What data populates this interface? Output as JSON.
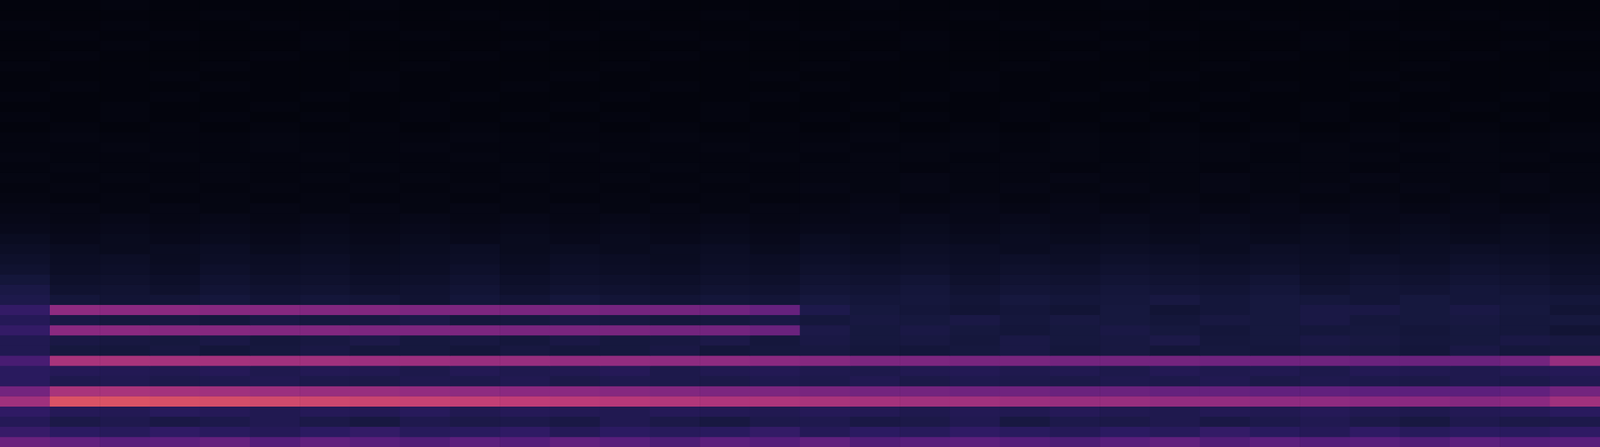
{
  "chart_data": {
    "type": "heatmap",
    "tick_labels": false,
    "zlim": [
      0,
      100
    ],
    "cells": [
      [
        48,
        46,
        44,
        45,
        47,
        43,
        46,
        44,
        42,
        45,
        43,
        46,
        44,
        41,
        45,
        43,
        46,
        42,
        44,
        45,
        43,
        41,
        44,
        46,
        42,
        45,
        43,
        44,
        42,
        45,
        43,
        44
      ],
      [
        36,
        33,
        31,
        34,
        32,
        30,
        33,
        35,
        31,
        32,
        34,
        30,
        33,
        31,
        32,
        35,
        30,
        33,
        31,
        34,
        32,
        30,
        33,
        31,
        35,
        32,
        30,
        34,
        31,
        33,
        32,
        34
      ],
      [
        30,
        25,
        27,
        24,
        26,
        28,
        25,
        23,
        27,
        25,
        26,
        24,
        28,
        25,
        23,
        26,
        27,
        24,
        25,
        28,
        23,
        26,
        25,
        27,
        24,
        26,
        28,
        25,
        23,
        27,
        25,
        26
      ],
      [
        34,
        30,
        29,
        31,
        30,
        28,
        30,
        29,
        31,
        28,
        30,
        29,
        28,
        30,
        29,
        28,
        30,
        29,
        27,
        29,
        28,
        30,
        28,
        27,
        29,
        28,
        30,
        28,
        27,
        29,
        30,
        32
      ],
      [
        60,
        75,
        75,
        74,
        73,
        72,
        71,
        70,
        69,
        68,
        67,
        66,
        65,
        64,
        63,
        63,
        62,
        61,
        60,
        60,
        59,
        58,
        58,
        57,
        57,
        56,
        56,
        55,
        55,
        54,
        55,
        60
      ],
      [
        50,
        62,
        62,
        61,
        60,
        59,
        58,
        58,
        57,
        56,
        55,
        55,
        54,
        53,
        52,
        52,
        51,
        50,
        50,
        49,
        49,
        48,
        48,
        47,
        47,
        46,
        46,
        45,
        45,
        45,
        46,
        50
      ],
      [
        32,
        27,
        28,
        26,
        27,
        28,
        26,
        25,
        27,
        26,
        28,
        25,
        27,
        26,
        25,
        27,
        26,
        28,
        25,
        27,
        26,
        25,
        27,
        26,
        28,
        25,
        27,
        26,
        25,
        27,
        26,
        28
      ],
      [
        32,
        30,
        29,
        28,
        30,
        27,
        29,
        28,
        26,
        29,
        27,
        28,
        30,
        26,
        28,
        29,
        27,
        26,
        28,
        29,
        27,
        28,
        26,
        29,
        27,
        28,
        26,
        29,
        28,
        27,
        29,
        30
      ],
      [
        40,
        62,
        62,
        61,
        61,
        60,
        60,
        59,
        59,
        58,
        58,
        57,
        57,
        56,
        56,
        55,
        54,
        52,
        52,
        51,
        51,
        50,
        50,
        50,
        49,
        49,
        49,
        48,
        48,
        48,
        50,
        58
      ],
      [
        28,
        22,
        21,
        23,
        20,
        22,
        24,
        21,
        22,
        20,
        23,
        21,
        22,
        24,
        20,
        22,
        23,
        21,
        20,
        22,
        24,
        21,
        23,
        20,
        22,
        21,
        23,
        22,
        20,
        24,
        21,
        22
      ],
      [
        28,
        24,
        23,
        22,
        24,
        21,
        23,
        25,
        22,
        23,
        21,
        24,
        22,
        23,
        25,
        21,
        24,
        22,
        23,
        21,
        24,
        22,
        23,
        25,
        21,
        22,
        24,
        23,
        21,
        22,
        24,
        23
      ],
      [
        35,
        55,
        55,
        54,
        54,
        53,
        53,
        52,
        52,
        52,
        51,
        51,
        51,
        50,
        50,
        48,
        25,
        22,
        24,
        22,
        20,
        22,
        24,
        22,
        20,
        22,
        21,
        22,
        20,
        22,
        21,
        18
      ],
      [
        30,
        24,
        22,
        23,
        21,
        24,
        22,
        23,
        25,
        21,
        22,
        24,
        23,
        21,
        22,
        24,
        21,
        23,
        22,
        24,
        21,
        23,
        22,
        20,
        23,
        22,
        24,
        21,
        22,
        23,
        21,
        22
      ],
      [
        35,
        56,
        55,
        55,
        54,
        54,
        53,
        53,
        52,
        52,
        51,
        51,
        50,
        50,
        49,
        47,
        26,
        22,
        20,
        18,
        20,
        18,
        22,
        18,
        20,
        22,
        24,
        24,
        22,
        24,
        22,
        18
      ],
      [
        26,
        20,
        18,
        19,
        21,
        18,
        20,
        19,
        17,
        20,
        18,
        21,
        19,
        18,
        20,
        19,
        22,
        20,
        21,
        19,
        22,
        20,
        21,
        23,
        20,
        22,
        21,
        19,
        22,
        20,
        21,
        20
      ],
      [
        24,
        16,
        17,
        15,
        18,
        16,
        17,
        15,
        16,
        18,
        15,
        17,
        16,
        15,
        17,
        16,
        19,
        18,
        20,
        17,
        19,
        18,
        20,
        19,
        18,
        20,
        17,
        19,
        18,
        20,
        19,
        17
      ],
      [
        20,
        14,
        15,
        13,
        16,
        14,
        15,
        13,
        14,
        16,
        13,
        15,
        14,
        13,
        15,
        14,
        17,
        16,
        18,
        15,
        17,
        16,
        18,
        17,
        16,
        18,
        15,
        17,
        16,
        18,
        17,
        15
      ],
      [
        16,
        12,
        13,
        11,
        14,
        12,
        13,
        11,
        12,
        14,
        11,
        13,
        12,
        11,
        13,
        12,
        15,
        14,
        15,
        13,
        15,
        14,
        16,
        15,
        14,
        15,
        13,
        15,
        14,
        16,
        15,
        13
      ],
      [
        14,
        11,
        12,
        10,
        12,
        11,
        12,
        10,
        11,
        12,
        10,
        12,
        11,
        10,
        12,
        11,
        13,
        12,
        13,
        12,
        13,
        12,
        14,
        13,
        12,
        13,
        12,
        13,
        12,
        14,
        13,
        12
      ],
      [
        12,
        10,
        9,
        10,
        11,
        9,
        10,
        9,
        10,
        11,
        9,
        10,
        9,
        10,
        11,
        9,
        11,
        10,
        12,
        11,
        10,
        11,
        12,
        11,
        10,
        12,
        11,
        10,
        11,
        12,
        11,
        10
      ],
      [
        10,
        8,
        9,
        8,
        9,
        8,
        9,
        8,
        9,
        8,
        9,
        8,
        9,
        8,
        9,
        8,
        10,
        9,
        10,
        9,
        10,
        9,
        10,
        9,
        10,
        9,
        10,
        9,
        10,
        9,
        10,
        9
      ],
      [
        8,
        7,
        8,
        7,
        8,
        7,
        8,
        7,
        8,
        7,
        8,
        7,
        8,
        7,
        8,
        7,
        8,
        8,
        9,
        8,
        9,
        8,
        9,
        8,
        9,
        8,
        9,
        8,
        9,
        8,
        9,
        8
      ],
      [
        7,
        6,
        7,
        6,
        7,
        6,
        7,
        6,
        7,
        6,
        7,
        6,
        7,
        6,
        7,
        6,
        7,
        7,
        8,
        7,
        8,
        7,
        8,
        7,
        8,
        7,
        8,
        7,
        8,
        7,
        8,
        7
      ],
      [
        6,
        6,
        5,
        6,
        5,
        6,
        5,
        6,
        5,
        6,
        5,
        6,
        5,
        6,
        5,
        6,
        6,
        7,
        6,
        7,
        6,
        7,
        6,
        7,
        6,
        7,
        6,
        7,
        6,
        7,
        6,
        7
      ],
      [
        5,
        4,
        5,
        4,
        5,
        4,
        5,
        4,
        5,
        4,
        5,
        4,
        5,
        4,
        5,
        4,
        5,
        6,
        5,
        6,
        5,
        6,
        5,
        6,
        5,
        6,
        5,
        6,
        5,
        6,
        5,
        6
      ],
      [
        4,
        5,
        4,
        5,
        4,
        5,
        4,
        5,
        4,
        5,
        4,
        5,
        4,
        5,
        4,
        5,
        6,
        5,
        6,
        5,
        6,
        5,
        6,
        5,
        6,
        5,
        6,
        5,
        6,
        5,
        6,
        5
      ],
      [
        5,
        4,
        5,
        4,
        5,
        4,
        5,
        4,
        5,
        4,
        5,
        4,
        5,
        4,
        5,
        4,
        5,
        5,
        6,
        5,
        5,
        6,
        5,
        5,
        6,
        5,
        5,
        6,
        5,
        5,
        6,
        5
      ],
      [
        4,
        5,
        4,
        4,
        5,
        4,
        4,
        5,
        4,
        4,
        5,
        4,
        4,
        5,
        4,
        4,
        5,
        5,
        4,
        5,
        5,
        4,
        5,
        5,
        4,
        5,
        5,
        4,
        5,
        5,
        4,
        5
      ],
      [
        5,
        4,
        4,
        5,
        4,
        4,
        5,
        4,
        4,
        5,
        4,
        4,
        5,
        4,
        4,
        5,
        4,
        5,
        5,
        4,
        5,
        5,
        4,
        5,
        5,
        4,
        5,
        5,
        4,
        5,
        5,
        4
      ],
      [
        4,
        4,
        5,
        4,
        4,
        5,
        4,
        4,
        5,
        4,
        4,
        5,
        4,
        4,
        5,
        4,
        5,
        4,
        5,
        5,
        4,
        5,
        4,
        5,
        5,
        4,
        5,
        4,
        5,
        5,
        4,
        5
      ],
      [
        4,
        5,
        4,
        4,
        4,
        5,
        4,
        4,
        4,
        5,
        4,
        4,
        4,
        5,
        4,
        4,
        4,
        5,
        4,
        5,
        4,
        5,
        4,
        5,
        4,
        5,
        4,
        5,
        4,
        5,
        4,
        5
      ],
      [
        3,
        4,
        3,
        4,
        3,
        4,
        3,
        4,
        3,
        4,
        3,
        4,
        3,
        4,
        3,
        4,
        3,
        4,
        3,
        4,
        3,
        4,
        3,
        4,
        3,
        4,
        3,
        4,
        3,
        4,
        3,
        4
      ],
      [
        4,
        3,
        4,
        3,
        4,
        3,
        4,
        3,
        4,
        3,
        4,
        3,
        4,
        3,
        4,
        3,
        4,
        3,
        4,
        3,
        4,
        3,
        4,
        3,
        4,
        3,
        4,
        3,
        4,
        3,
        4,
        3
      ],
      [
        3,
        3,
        4,
        3,
        3,
        4,
        3,
        3,
        4,
        3,
        3,
        4,
        3,
        3,
        4,
        3,
        3,
        4,
        3,
        3,
        4,
        3,
        3,
        4,
        3,
        3,
        4,
        3,
        3,
        4,
        3,
        3
      ],
      [
        4,
        3,
        3,
        4,
        3,
        3,
        4,
        3,
        3,
        4,
        3,
        3,
        4,
        3,
        3,
        4,
        3,
        3,
        4,
        3,
        3,
        4,
        3,
        3,
        4,
        3,
        3,
        4,
        3,
        3,
        4,
        3
      ],
      [
        3,
        4,
        3,
        3,
        4,
        3,
        3,
        4,
        3,
        3,
        4,
        3,
        3,
        4,
        3,
        3,
        4,
        3,
        3,
        4,
        3,
        3,
        4,
        3,
        3,
        4,
        3,
        3,
        4,
        3,
        3,
        4
      ],
      [
        3,
        3,
        3,
        4,
        3,
        3,
        3,
        4,
        3,
        3,
        3,
        4,
        3,
        3,
        3,
        4,
        3,
        3,
        3,
        4,
        3,
        3,
        3,
        4,
        3,
        3,
        3,
        4,
        3,
        3,
        3,
        4
      ],
      [
        4,
        3,
        3,
        3,
        4,
        3,
        3,
        3,
        4,
        3,
        3,
        3,
        4,
        3,
        3,
        3,
        4,
        3,
        3,
        3,
        4,
        3,
        3,
        3,
        4,
        3,
        3,
        3,
        4,
        3,
        3,
        3
      ],
      [
        3,
        4,
        3,
        3,
        3,
        4,
        3,
        3,
        3,
        4,
        3,
        3,
        3,
        4,
        3,
        3,
        3,
        4,
        3,
        3,
        3,
        4,
        3,
        3,
        3,
        4,
        3,
        3,
        3,
        4,
        3,
        3
      ],
      [
        3,
        3,
        4,
        3,
        3,
        3,
        4,
        3,
        3,
        3,
        4,
        3,
        3,
        3,
        4,
        3,
        3,
        3,
        4,
        3,
        3,
        3,
        4,
        3,
        3,
        3,
        4,
        3,
        3,
        3,
        4,
        3
      ],
      [
        3,
        4,
        3,
        4,
        3,
        3,
        4,
        3,
        4,
        3,
        3,
        4,
        3,
        4,
        3,
        3,
        4,
        3,
        4,
        3,
        3,
        4,
        3,
        4,
        3,
        3,
        4,
        3,
        4,
        3,
        3,
        4
      ],
      [
        4,
        3,
        4,
        3,
        3,
        4,
        3,
        4,
        3,
        3,
        4,
        3,
        4,
        3,
        3,
        4,
        3,
        4,
        3,
        3,
        4,
        3,
        4,
        3,
        3,
        4,
        3,
        4,
        3,
        3,
        4,
        3
      ],
      [
        3,
        3,
        3,
        3,
        4,
        3,
        3,
        3,
        3,
        4,
        3,
        3,
        3,
        3,
        4,
        3,
        3,
        3,
        3,
        4,
        3,
        3,
        3,
        3,
        4,
        3,
        3,
        3,
        3,
        4,
        3,
        3
      ],
      [
        3,
        3,
        4,
        3,
        3,
        3,
        3,
        4,
        3,
        3,
        3,
        3,
        4,
        3,
        3,
        3,
        3,
        4,
        3,
        3,
        3,
        3,
        4,
        3,
        3,
        3,
        3,
        4,
        3,
        3,
        3,
        3
      ]
    ]
  }
}
